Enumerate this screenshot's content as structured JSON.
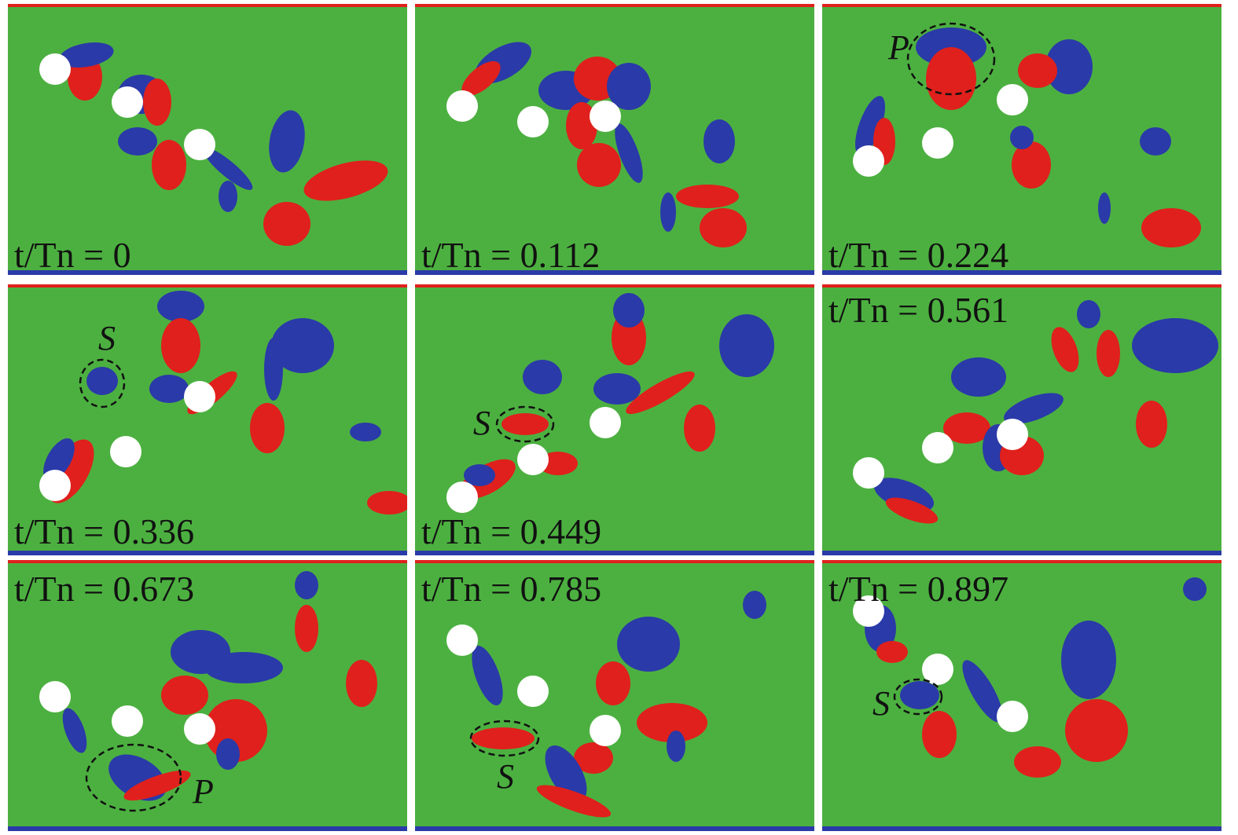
{
  "panels": [
    {
      "time_label": "t/Tn = 0"
    },
    {
      "time_label": "t/Tn = 0.112"
    },
    {
      "time_label": "t/Tn = 0.224",
      "annotation": "P"
    },
    {
      "time_label": "t/Tn = 0.336",
      "annotation": "S"
    },
    {
      "time_label": "t/Tn = 0.449",
      "annotation": "S"
    },
    {
      "time_label": "t/Tn = 0.561"
    },
    {
      "time_label": "t/Tn = 0.673",
      "annotation": "P"
    },
    {
      "time_label": "t/Tn = 0.785",
      "annotation": "S"
    },
    {
      "time_label": "t/Tn = 0.897",
      "annotation": "S"
    }
  ]
}
